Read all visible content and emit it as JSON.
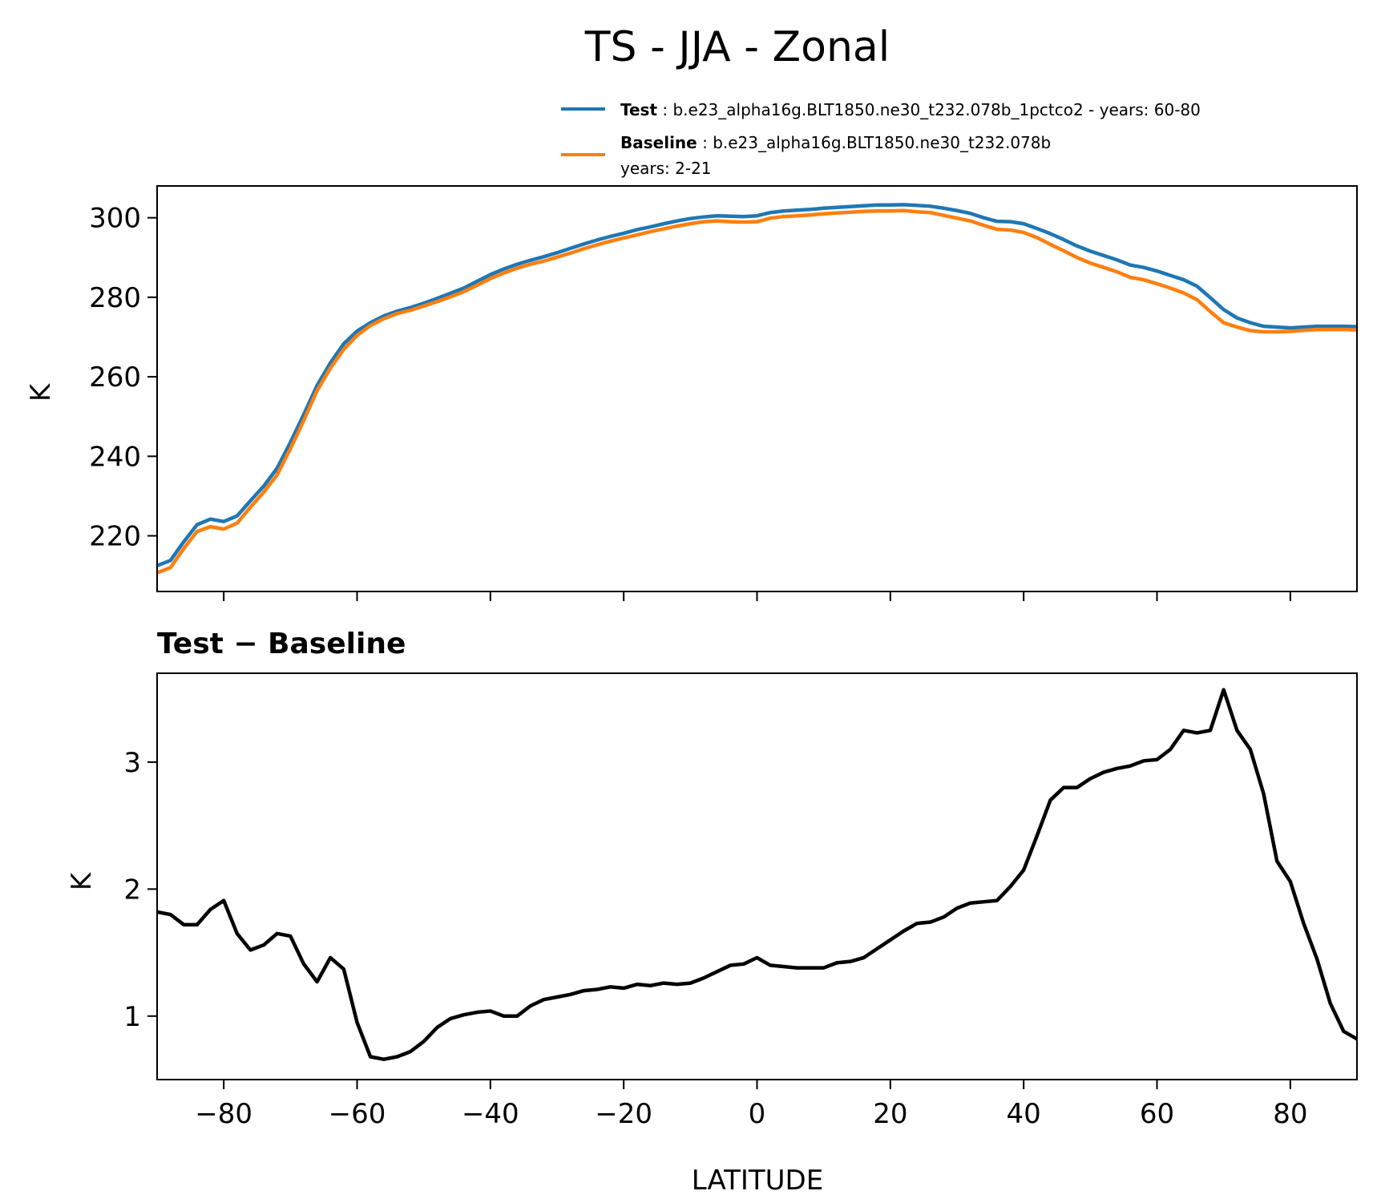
{
  "title": "TS - JJA - Zonal",
  "legend": {
    "test": {
      "label": "Test",
      "text": ": b.e23_alpha16g.BLT1850.ne30_t232.078b_1pctco2 - years: 60-80"
    },
    "baseline": {
      "label": "Baseline",
      "text": ": b.e23_alpha16g.BLT1850.ne30_t232.078b",
      "text2": "years: 2-21"
    }
  },
  "colors": {
    "test": "#1f77b4",
    "baseline": "#ff7f0e",
    "diff": "#000000"
  },
  "chart_data": [
    {
      "type": "line",
      "title": "",
      "xlabel": "",
      "ylabel": "K",
      "xlim": [
        -90,
        90
      ],
      "ylim": [
        206,
        308
      ],
      "xticks": [
        -80,
        -60,
        -40,
        -20,
        0,
        20,
        40,
        60,
        80
      ],
      "yticks": [
        220,
        240,
        260,
        280,
        300
      ],
      "x": [
        -90,
        -88,
        -86,
        -84,
        -82,
        -80,
        -78,
        -76,
        -74,
        -72,
        -70,
        -68,
        -66,
        -64,
        -62,
        -60,
        -58,
        -56,
        -54,
        -52,
        -50,
        -48,
        -46,
        -44,
        -42,
        -40,
        -38,
        -36,
        -34,
        -32,
        -30,
        -28,
        -26,
        -24,
        -22,
        -20,
        -18,
        -16,
        -14,
        -12,
        -10,
        -8,
        -6,
        -4,
        -2,
        0,
        2,
        4,
        6,
        8,
        10,
        12,
        14,
        16,
        18,
        20,
        22,
        24,
        26,
        28,
        30,
        32,
        34,
        36,
        38,
        40,
        42,
        44,
        46,
        48,
        50,
        52,
        54,
        56,
        58,
        60,
        62,
        64,
        66,
        68,
        70,
        72,
        74,
        76,
        78,
        80,
        82,
        84,
        86,
        88,
        90
      ],
      "series": [
        {
          "name": "Test",
          "values": [
            212.5,
            213.8,
            218.5,
            222.8,
            224.2,
            223.6,
            225.0,
            228.8,
            232.5,
            237.0,
            243.5,
            250.5,
            257.8,
            263.5,
            268.3,
            271.5,
            273.6,
            275.3,
            276.5,
            277.4,
            278.5,
            279.7,
            281.0,
            282.3,
            284.0,
            285.7,
            287.1,
            288.3,
            289.3,
            290.2,
            291.2,
            292.3,
            293.4,
            294.4,
            295.3,
            296.1,
            297.0,
            297.7,
            298.5,
            299.2,
            299.8,
            300.2,
            300.5,
            300.4,
            300.3,
            300.5,
            301.3,
            301.7,
            301.9,
            302.1,
            302.4,
            302.6,
            302.8,
            303.0,
            303.2,
            303.2,
            303.3,
            303.1,
            302.9,
            302.4,
            301.8,
            301.1,
            300.0,
            299.1,
            299.0,
            298.5,
            297.3,
            296.0,
            294.5,
            292.9,
            291.6,
            290.5,
            289.4,
            288.1,
            287.5,
            286.6,
            285.5,
            284.4,
            282.8,
            279.9,
            276.9,
            274.8,
            273.6,
            272.7,
            272.5,
            272.3,
            272.5,
            272.7,
            272.7,
            272.7,
            272.6
          ]
        },
        {
          "name": "Baseline",
          "values": [
            210.7,
            212.0,
            216.8,
            221.1,
            222.3,
            221.7,
            223.2,
            227.2,
            231.0,
            235.3,
            241.9,
            249.0,
            256.5,
            262.2,
            266.9,
            270.4,
            272.9,
            274.6,
            275.9,
            276.7,
            277.8,
            278.9,
            280.1,
            281.4,
            283.0,
            284.7,
            286.1,
            287.3,
            288.3,
            289.1,
            290.1,
            291.1,
            292.2,
            293.2,
            294.1,
            294.9,
            295.7,
            296.5,
            297.2,
            297.9,
            298.5,
            299.0,
            299.2,
            299.0,
            298.9,
            299.0,
            299.9,
            300.3,
            300.5,
            300.7,
            301.0,
            301.2,
            301.4,
            301.6,
            301.7,
            301.7,
            301.8,
            301.5,
            301.3,
            300.6,
            299.9,
            299.2,
            298.1,
            297.1,
            296.9,
            296.3,
            295.0,
            293.3,
            291.7,
            290.0,
            288.6,
            287.5,
            286.4,
            285.0,
            284.4,
            283.4,
            282.3,
            281.1,
            279.4,
            276.4,
            273.6,
            272.5,
            271.6,
            271.3,
            271.3,
            271.4,
            271.7,
            271.9,
            271.9,
            271.9,
            271.8
          ]
        }
      ]
    },
    {
      "type": "line",
      "title": "Test − Baseline",
      "xlabel": "LATITUDE",
      "ylabel": "K",
      "xlim": [
        -90,
        90
      ],
      "ylim": [
        0.5,
        3.7
      ],
      "xticks": [
        -80,
        -60,
        -40,
        -20,
        0,
        20,
        40,
        60,
        80
      ],
      "yticks": [
        1,
        2,
        3
      ],
      "x": [
        -90,
        -88,
        -86,
        -84,
        -82,
        -80,
        -78,
        -76,
        -74,
        -72,
        -70,
        -68,
        -66,
        -64,
        -62,
        -60,
        -58,
        -56,
        -54,
        -52,
        -50,
        -48,
        -46,
        -44,
        -42,
        -40,
        -38,
        -36,
        -34,
        -32,
        -30,
        -28,
        -26,
        -24,
        -22,
        -20,
        -18,
        -16,
        -14,
        -12,
        -10,
        -8,
        -6,
        -4,
        -2,
        0,
        2,
        4,
        6,
        8,
        10,
        12,
        14,
        16,
        18,
        20,
        22,
        24,
        26,
        28,
        30,
        32,
        34,
        36,
        38,
        40,
        42,
        44,
        46,
        48,
        50,
        52,
        54,
        56,
        58,
        60,
        62,
        64,
        66,
        68,
        70,
        72,
        74,
        76,
        78,
        80,
        82,
        84,
        86,
        88,
        90
      ],
      "series": [
        {
          "name": "Test − Baseline",
          "values": [
            1.82,
            1.8,
            1.72,
            1.72,
            1.84,
            1.91,
            1.65,
            1.52,
            1.56,
            1.65,
            1.63,
            1.41,
            1.27,
            1.46,
            1.37,
            0.95,
            0.68,
            0.66,
            0.68,
            0.72,
            0.8,
            0.91,
            0.98,
            1.01,
            1.03,
            1.04,
            1.0,
            1.0,
            1.08,
            1.13,
            1.15,
            1.17,
            1.2,
            1.21,
            1.23,
            1.22,
            1.25,
            1.24,
            1.26,
            1.25,
            1.26,
            1.3,
            1.35,
            1.4,
            1.41,
            1.46,
            1.4,
            1.39,
            1.38,
            1.38,
            1.38,
            1.42,
            1.43,
            1.46,
            1.53,
            1.6,
            1.67,
            1.73,
            1.74,
            1.78,
            1.85,
            1.89,
            1.9,
            1.91,
            2.02,
            2.15,
            2.42,
            2.7,
            2.8,
            2.8,
            2.87,
            2.92,
            2.95,
            2.97,
            3.01,
            3.02,
            3.1,
            3.25,
            3.23,
            3.25,
            3.57,
            3.25,
            3.1,
            2.75,
            2.22,
            2.06,
            1.73,
            1.45,
            1.1,
            0.88,
            0.82
          ]
        }
      ]
    }
  ]
}
